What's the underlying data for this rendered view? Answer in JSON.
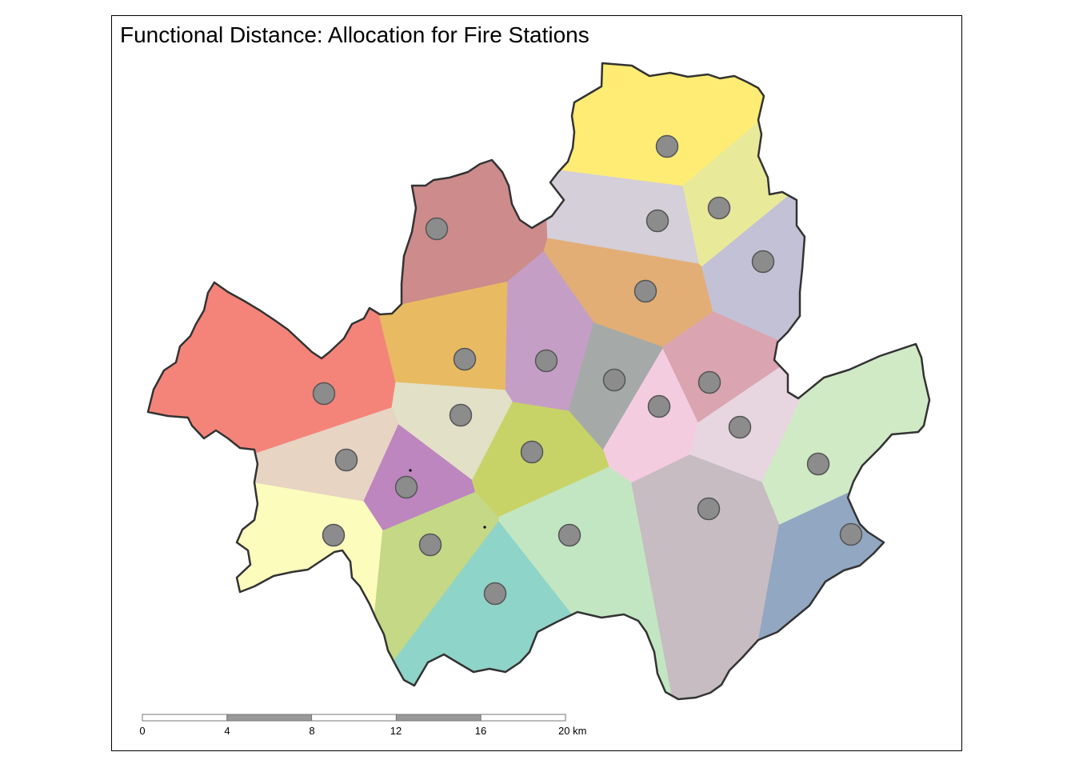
{
  "map": {
    "title": "Functional Distance: Allocation for Fire Stations",
    "colors": {
      "outline": "#333333",
      "station_fill": "#8c8c8c",
      "station_stroke": "#555555",
      "scalebar_dark": "#999999",
      "scalebar_light": "#ffffff",
      "regions": [
        "#f4847a",
        "#cd8b8b",
        "#ffec74",
        "#e9e99a",
        "#d4cfd9",
        "#e2ae76",
        "#c3c1d6",
        "#c59ec6",
        "#e8bb62",
        "#a5aaa8",
        "#daa4b0",
        "#e2e0c7",
        "#f4cce0",
        "#e7d6e0",
        "#d0eac6",
        "#e7d4c2",
        "#bd86bf",
        "#c8d367",
        "#c3e6c2",
        "#c6bcc2",
        "#fcfcbd",
        "#c4d886",
        "#8fd4c8",
        "#92a7c2"
      ]
    },
    "stations_count": 24,
    "scalebar": {
      "ticks": [
        "0",
        "4",
        "8",
        "12",
        "16",
        "20 km"
      ]
    }
  }
}
